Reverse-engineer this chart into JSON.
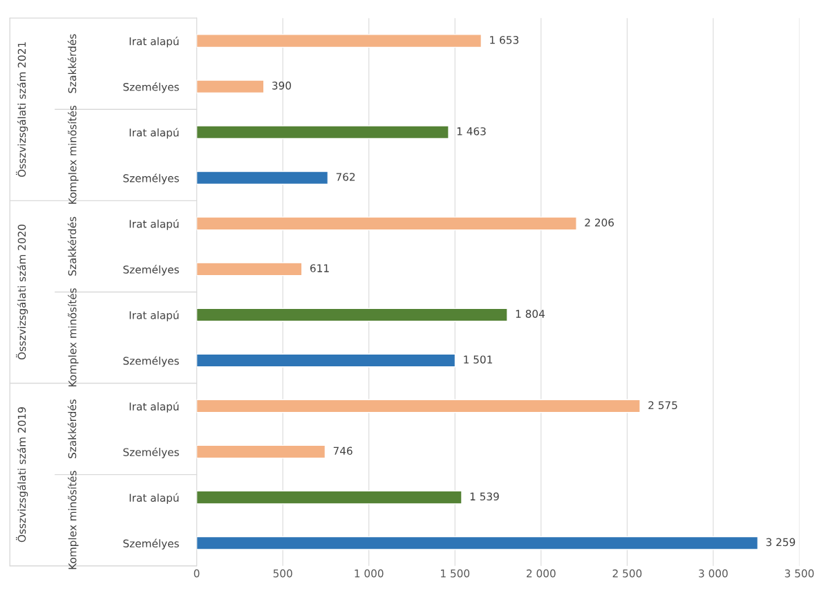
{
  "chart_data": {
    "type": "bar",
    "orientation": "horizontal",
    "categories": [
      "Irat alapú",
      "Személyes",
      "Irat alapú",
      "Személyes",
      "Irat alapú",
      "Személyes",
      "Irat alapú",
      "Személyes",
      "Irat alapú",
      "Személyes",
      "Irat alapú",
      "Személyes"
    ],
    "values": [
      1653,
      390,
      1463,
      762,
      2206,
      611,
      1804,
      1501,
      2575,
      746,
      1539,
      3259
    ],
    "colors": [
      "#f4b183",
      "#f4b183",
      "#548235",
      "#2e75b6",
      "#f4b183",
      "#f4b183",
      "#548235",
      "#2e75b6",
      "#f4b183",
      "#f4b183",
      "#548235",
      "#2e75b6"
    ],
    "value_labels": [
      "1 653",
      "390",
      "1 463",
      "762",
      "2 206",
      "611",
      "1 804",
      "1 501",
      "2 575",
      "746",
      "1 539",
      "3 259"
    ],
    "xlim": [
      0,
      3500
    ],
    "xticks": [
      0,
      500,
      {
        "value": 1000,
        "label": "1 000"
      },
      {
        "value": 1500,
        "label": "1 500"
      },
      {
        "value": 2000,
        "label": "2 000"
      },
      {
        "value": 2500,
        "label": "2 500"
      },
      {
        "value": 3000,
        "label": "3 000"
      },
      {
        "value": 3500,
        "label": "3 500"
      }
    ],
    "grid": "x",
    "annotations": [
      "Összvizsgálati szám 2021",
      "Szakkérdés",
      "Komplex minősítés",
      "Összvizsgálati szám 2020",
      "Szakkérdés",
      "Komplex minősítés",
      "Összvizsgálati szám 2019",
      "Szakkérdés",
      "Komplex minősítés"
    ]
  }
}
